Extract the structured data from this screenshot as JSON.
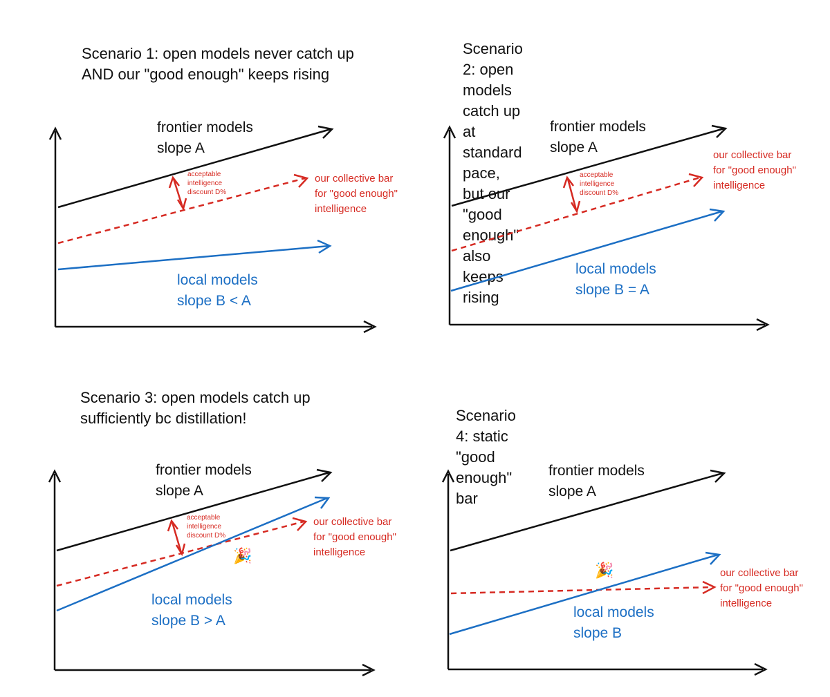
{
  "colors": {
    "frontier": "#111111",
    "bar": "#d62a22",
    "local": "#1c6fc4",
    "axis": "#111111"
  },
  "labels": {
    "frontier": [
      "frontier models",
      "slope A"
    ],
    "bar": [
      "our collective bar",
      "for \"good enough\"",
      "intelligence"
    ],
    "discount": [
      "acceptable",
      "intelligence",
      "discount D%"
    ],
    "celebrate": "🎉"
  },
  "scenarios": [
    {
      "title": "Scenario 1: open models never catch up\nAND our \"good enough\" keeps rising",
      "local": [
        "local models",
        "slope B < A"
      ]
    },
    {
      "title": "Scenario 2: open models catch up at\nstandard pace, but our \"good enough\"\nalso keeps rising",
      "local": [
        "local models",
        "slope B = A"
      ]
    },
    {
      "title": "Scenario 3: open models catch up\nsufficiently bc distillation!",
      "local": [
        "local models",
        "slope B > A"
      ]
    },
    {
      "title": "Scenario 4: static \"good enough\" bar",
      "local": [
        "local models",
        "slope B"
      ]
    }
  ]
}
